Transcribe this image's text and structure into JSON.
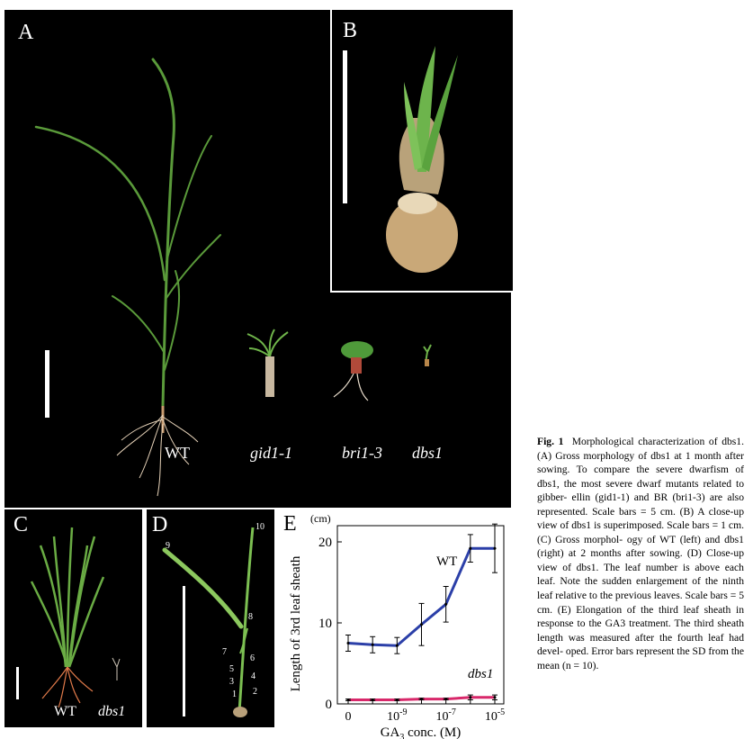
{
  "panels": {
    "A": {
      "label": "A",
      "genotypes": [
        "WT",
        "gid1-1",
        "bri1-3",
        "dbs1"
      ]
    },
    "B": {
      "label": "B"
    },
    "C": {
      "label": "C",
      "genotypes": [
        "WT",
        "dbs1"
      ]
    },
    "D": {
      "label": "D",
      "leaf_numbers": [
        "10",
        "9",
        "8",
        "7",
        "6",
        "5",
        "4",
        "3",
        "2",
        "1"
      ]
    },
    "E": {
      "label": "E"
    }
  },
  "chart_data": {
    "type": "line",
    "title": "",
    "ylabel": "Length of 3rd leaf sheath",
    "yunit": "(cm)",
    "xlabel": "GA3 conc. (M)",
    "x_ticks": [
      "0",
      "10-9",
      "10-7",
      "10-5"
    ],
    "x": [
      "0",
      "10^-10",
      "10^-9",
      "10^-8",
      "10^-7",
      "10^-6",
      "10^-5"
    ],
    "y_ticks": [
      "0",
      "10",
      "20"
    ],
    "ylim": [
      0,
      22
    ],
    "series": [
      {
        "name": "WT",
        "color": "#2b3fa8",
        "values": [
          7.5,
          7.3,
          7.2,
          9.8,
          12.3,
          19.2,
          19.2
        ],
        "errors": [
          1.0,
          1.0,
          1.0,
          2.6,
          2.2,
          1.7,
          3.0
        ]
      },
      {
        "name": "dbs1",
        "color": "#d8286a",
        "values": [
          0.5,
          0.5,
          0.5,
          0.6,
          0.6,
          0.8,
          0.8
        ],
        "errors": [
          0.1,
          0.1,
          0.1,
          0.1,
          0.1,
          0.3,
          0.3
        ]
      }
    ]
  },
  "caption": {
    "figure_label": "Fig. 1",
    "lines": [
      "Morphological characterization",
      "of dbs1. (A) Gross morphology of dbs1",
      "at 1 month after sowing. To compare the",
      "severe dwarfism of dbs1, the most",
      "severe dwarf mutants related to gibber-",
      "ellin (gid1-1) and BR (bri1-3) are also",
      "represented. Scale bars = 5 cm. (B) A",
      "close-up view of dbs1 is superimposed.",
      "Scale bars = 1 cm. (C) Gross morphol-",
      "ogy of WT (left) and dbs1 (right) at 2",
      "months after sowing. (D) Close-up view",
      "of dbs1. The leaf number is above each",
      "leaf. Note the sudden enlargement of the",
      "ninth leaf relative to the previous leaves.",
      "Scale bars = 5 cm. (E) Elongation of the",
      "third leaf sheath in response to the GA3",
      "treatment. The third sheath length was",
      "measured after the fourth leaf had devel-",
      "oped. Error bars represent the SD from",
      "the mean (n = 10)."
    ]
  }
}
